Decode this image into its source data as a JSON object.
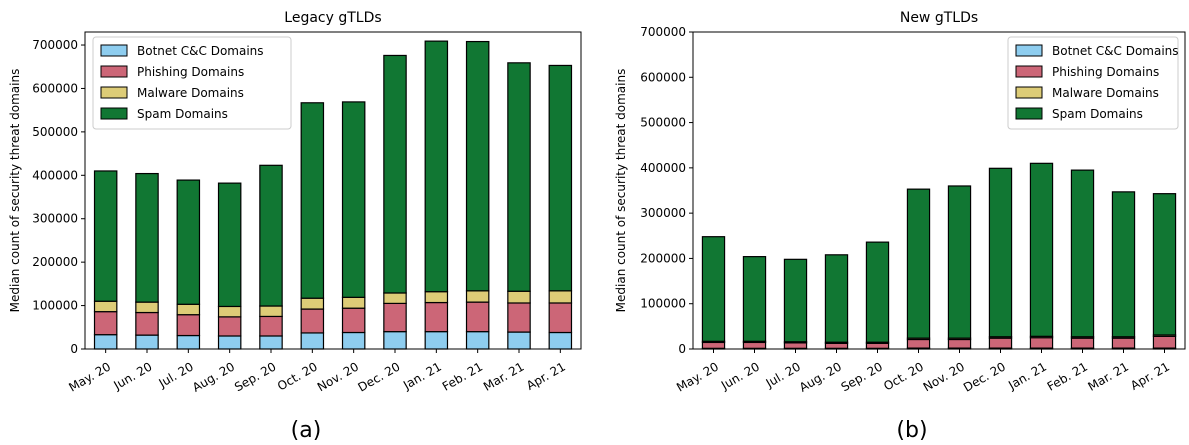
{
  "colors": {
    "botnet": "#8ecdef",
    "phishing": "#cc6677",
    "malware": "#ddcc77",
    "spam": "#117733"
  },
  "chart_data": [
    {
      "type": "bar",
      "stacked": true,
      "title": "Legacy gTLDs",
      "ylabel": "Median count of security threat domains",
      "panel_label": "(a)",
      "categories": [
        "May. 20",
        "Jun. 20",
        "Jul. 20",
        "Aug. 20",
        "Sep. 20",
        "Oct. 20",
        "Nov. 20",
        "Dec. 20",
        "Jan. 21",
        "Feb. 21",
        "Mar. 21",
        "Apr. 21"
      ],
      "ylim": [
        0,
        730000
      ],
      "yticks": [
        0,
        100000,
        200000,
        300000,
        400000,
        500000,
        600000,
        700000
      ],
      "legend_position": "upper-left",
      "series": [
        {
          "name": "Botnet C&C Domains",
          "key": "botnet",
          "values": [
            33000,
            32000,
            31000,
            30000,
            30000,
            37000,
            38000,
            40000,
            40000,
            40000,
            39000,
            38000
          ]
        },
        {
          "name": "Phishing Domains",
          "key": "phishing",
          "values": [
            53000,
            52000,
            48000,
            44000,
            45000,
            55000,
            56000,
            65000,
            67000,
            68000,
            67000,
            68000
          ]
        },
        {
          "name": "Malware Domains",
          "key": "malware",
          "values": [
            24000,
            24000,
            24000,
            24000,
            24000,
            25000,
            25000,
            24000,
            25000,
            26000,
            27000,
            28000
          ]
        },
        {
          "name": "Spam Domains",
          "key": "spam",
          "values": [
            300000,
            296000,
            286000,
            284000,
            324000,
            450000,
            450000,
            547000,
            577000,
            574000,
            526000,
            519000
          ]
        }
      ]
    },
    {
      "type": "bar",
      "stacked": true,
      "title": "New gTLDs",
      "ylabel": "Median count of security threat domains",
      "panel_label": "(b)",
      "categories": [
        "May. 20",
        "Jun. 20",
        "Jul. 20",
        "Aug. 20",
        "Sep. 20",
        "Oct. 20",
        "Nov. 20",
        "Dec. 20",
        "Jan. 21",
        "Feb. 21",
        "Mar. 21",
        "Apr. 21"
      ],
      "ylim": [
        0,
        700000
      ],
      "yticks": [
        0,
        100000,
        200000,
        300000,
        400000,
        500000,
        600000,
        700000
      ],
      "legend_position": "upper-right",
      "series": [
        {
          "name": "Botnet C&C Domains",
          "key": "botnet",
          "values": [
            1500,
            1500,
            1500,
            1500,
            1500,
            2000,
            2000,
            2000,
            2000,
            2000,
            2000,
            2000
          ]
        },
        {
          "name": "Phishing Domains",
          "key": "phishing",
          "values": [
            13000,
            13000,
            12000,
            11000,
            11000,
            19000,
            19000,
            22000,
            23000,
            22000,
            22000,
            26000
          ]
        },
        {
          "name": "Malware Domains",
          "key": "malware",
          "values": [
            2500,
            2500,
            2500,
            2500,
            2500,
            3000,
            3000,
            3000,
            3000,
            3000,
            3000,
            3000
          ]
        },
        {
          "name": "Spam Domains",
          "key": "spam",
          "values": [
            231000,
            187000,
            182000,
            193000,
            221000,
            329000,
            336000,
            372000,
            382000,
            368000,
            320000,
            312000
          ]
        }
      ]
    }
  ]
}
